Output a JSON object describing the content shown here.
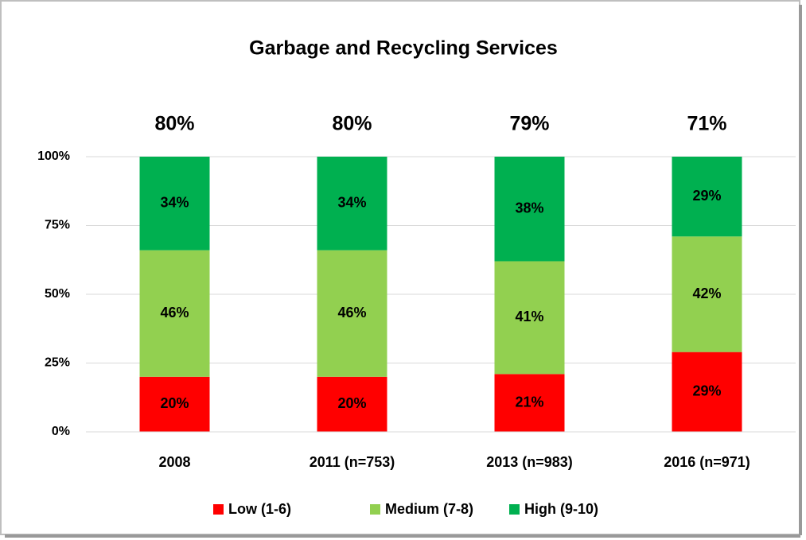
{
  "chart_data": {
    "type": "stacked_bar",
    "title": "Garbage and Recycling Services",
    "categories": [
      "2008",
      "2011 (n=753)",
      "2013 (n=983)",
      "2016 (n=971)"
    ],
    "top_labels": [
      "80%",
      "80%",
      "79%",
      "71%"
    ],
    "series": [
      {
        "name": "Low (1-6)",
        "color": "#ff0000",
        "values": [
          20,
          20,
          21,
          29
        ],
        "value_labels": [
          "20%",
          "20%",
          "21%",
          "29%"
        ]
      },
      {
        "name": "Medium (7-8)",
        "color": "#92d050",
        "values": [
          46,
          46,
          41,
          42
        ],
        "value_labels": [
          "46%",
          "46%",
          "41%",
          "42%"
        ]
      },
      {
        "name": "High (9-10)",
        "color": "#00b050",
        "values": [
          34,
          34,
          38,
          29
        ],
        "value_labels": [
          "34%",
          "34%",
          "38%",
          "29%"
        ]
      }
    ],
    "ylim": [
      0,
      100
    ],
    "yticks": [
      {
        "value": 0,
        "label": "0%"
      },
      {
        "value": 25,
        "label": "25%"
      },
      {
        "value": 50,
        "label": "50%"
      },
      {
        "value": 75,
        "label": "75%"
      },
      {
        "value": 100,
        "label": "100%"
      }
    ],
    "grid": true,
    "legend": "bottom"
  }
}
